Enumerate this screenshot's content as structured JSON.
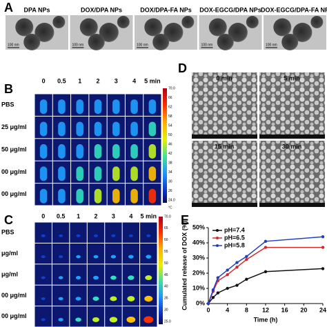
{
  "panel_labels": [
    "A",
    "B",
    "C",
    "D",
    "E"
  ],
  "panel_a": {
    "titles": [
      "DPA NPs",
      "DOX/DPA NPs",
      "DOX/DPA-FA NPs",
      "DOX-EGCG/DPA NPs",
      "DOX-EGCG/DPA-FA NP"
    ],
    "scale_bar": "100 nm"
  },
  "panel_b": {
    "columns": [
      "0",
      "0.5",
      "1",
      "2",
      "3",
      "4",
      "5 min"
    ],
    "rows": [
      "PBS",
      "25 μg/ml",
      "50 μg/ml",
      "00 μg/ml",
      "00 μg/ml"
    ],
    "colorbar": [
      "70.0",
      "66",
      "62",
      "58",
      "54",
      "50",
      "46",
      "42",
      "38",
      "34",
      "30",
      "26",
      "24.0"
    ],
    "unit": "°C"
  },
  "panel_c": {
    "columns": [
      "0",
      "0.5",
      "1",
      "2",
      "3",
      "4",
      "5 min"
    ],
    "rows": [
      "PBS",
      "μg/ml",
      "μg/ml",
      "00 μg/ml",
      "00 μg/ml"
    ],
    "colorbar": [
      "70.0",
      "65",
      "60",
      "55",
      "50",
      "45",
      "40",
      "35",
      "30",
      "25.0"
    ],
    "unit": "°C"
  },
  "panel_d": {
    "titles": [
      "0 min",
      "5 min",
      "15 min",
      "30 min"
    ]
  },
  "chart_data": {
    "type": "line",
    "x_label": "Time (h)",
    "y_label": "Cumulated release of DOX (%)",
    "x": [
      0,
      1,
      2,
      4,
      6,
      8,
      12,
      24
    ],
    "series": [
      {
        "name": "pH=7.4",
        "color": "#111111",
        "values": [
          0,
          4,
          7,
          10,
          12,
          16,
          21,
          23
        ]
      },
      {
        "name": "pH=6.5",
        "color": "#d62728",
        "values": [
          0,
          8,
          15,
          19,
          24,
          29,
          37,
          37
        ]
      },
      {
        "name": "pH=5.8",
        "color": "#1f3fbf",
        "values": [
          0,
          9,
          17,
          22,
          27,
          31,
          41,
          44
        ]
      }
    ],
    "xlim": [
      0,
      24
    ],
    "xticks": [
      0,
      4,
      8,
      12,
      16,
      20,
      24
    ],
    "ylim": [
      0,
      50
    ],
    "yticks": [
      {
        "value": 0,
        "label": "0%"
      },
      {
        "value": 10,
        "label": "10%"
      },
      {
        "value": 20,
        "label": "20%"
      },
      {
        "value": 30,
        "label": "30%"
      },
      {
        "value": 40,
        "label": "40%"
      },
      {
        "value": 50,
        "label": "50%"
      }
    ],
    "legend": "upper-left"
  }
}
